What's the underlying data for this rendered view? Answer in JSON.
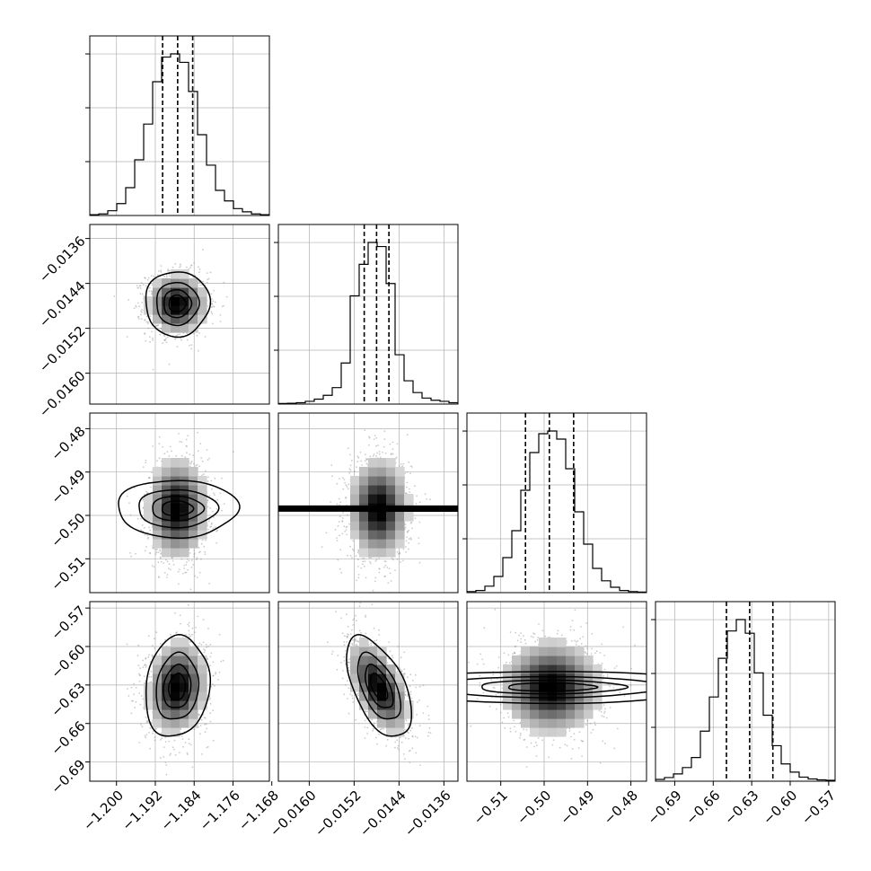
{
  "chart_data": {
    "type": "corner",
    "parameters": 4,
    "grid": true,
    "colors": {
      "line": "#000000",
      "grid": "#b0b0b0",
      "scatter": "#8c8c8c"
    },
    "ranges": [
      [
        -1.2055,
        -1.1685
      ],
      [
        -0.01655,
        -0.01335
      ],
      [
        -0.5178,
        -0.4764
      ],
      [
        -0.705,
        -0.565
      ]
    ],
    "ticks": [
      [
        "−1.200",
        "−1.192",
        "−1.184",
        "−1.176",
        "−1.168"
      ],
      [
        "−0.0160",
        "−0.0152",
        "−0.0144",
        "−0.0136"
      ],
      [
        "−0.51",
        "−0.50",
        "−0.49",
        "−0.48"
      ],
      [
        "−0.69",
        "−0.66",
        "−0.63",
        "−0.60",
        "−0.57"
      ]
    ],
    "tick_values": [
      [
        -1.2,
        -1.192,
        -1.184,
        -1.176,
        -1.168
      ],
      [
        -0.016,
        -0.0152,
        -0.0144,
        -0.0136
      ],
      [
        -0.51,
        -0.5,
        -0.49,
        -0.48
      ],
      [
        -0.69,
        -0.66,
        -0.63,
        -0.6,
        -0.57
      ]
    ],
    "means": [
      -1.1875,
      -0.01476,
      -0.4984,
      -0.6316
    ],
    "sigmas": [
      0.0032,
      0.00028,
      0.006,
      0.019
    ],
    "correlations": [
      [
        1,
        0,
        0,
        0.12
      ],
      [
        0,
        1,
        0,
        -0.55
      ],
      [
        0,
        0,
        1,
        0
      ],
      [
        0.12,
        -0.55,
        0,
        1
      ]
    ],
    "quantiles": [
      [
        -1.1905,
        -1.1874,
        -1.1843
      ],
      [
        -0.01502,
        -0.0148,
        -0.01458
      ],
      [
        -0.5043,
        -0.4988,
        -0.4932
      ],
      [
        -0.6497,
        -0.6316,
        -0.6135
      ]
    ],
    "histograms": [
      {
        "bins": 20,
        "counts": [
          3,
          6,
          18,
          45,
          105,
          210,
          345,
          505,
          598,
          610,
          578,
          468,
          305,
          190,
          95,
          55,
          26,
          14,
          6,
          3
        ]
      },
      {
        "bins": 20,
        "counts": [
          2,
          3,
          5,
          10,
          18,
          32,
          60,
          150,
          395,
          510,
          590,
          575,
          440,
          180,
          85,
          42,
          22,
          14,
          10,
          5
        ]
      },
      {
        "bins": 20,
        "counts": [
          2,
          4,
          12,
          30,
          65,
          115,
          190,
          260,
          295,
          300,
          285,
          230,
          150,
          90,
          45,
          22,
          10,
          4,
          2,
          1
        ]
      },
      {
        "bins": 20,
        "counts": [
          4,
          8,
          16,
          30,
          52,
          110,
          185,
          270,
          330,
          355,
          325,
          238,
          145,
          78,
          38,
          20,
          9,
          5,
          3,
          2
        ]
      }
    ]
  }
}
